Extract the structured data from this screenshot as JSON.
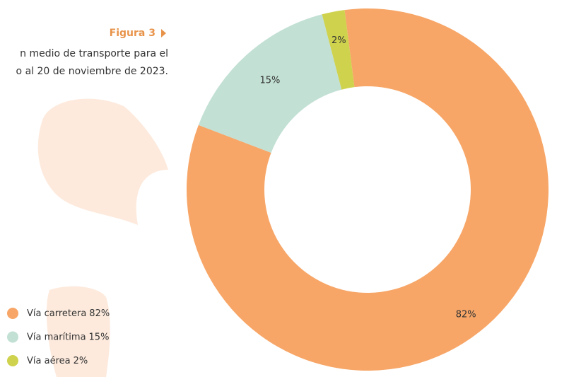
{
  "chart_data": {
    "type": "pie",
    "figure_label": "Figura 3",
    "caption_lines": [
      "n medio de transporte para el",
      "o al 20 de noviembre de 2023."
    ],
    "categories": [
      "Vía carretera",
      "Vía marítima",
      "Vía aérea"
    ],
    "values": [
      82,
      15,
      2
    ],
    "value_labels": [
      "82%",
      "15%",
      "2%"
    ],
    "colors": [
      "#f7a667",
      "#c2e0d4",
      "#cfd24c"
    ],
    "donut": true,
    "legend": "bottom-left"
  }
}
